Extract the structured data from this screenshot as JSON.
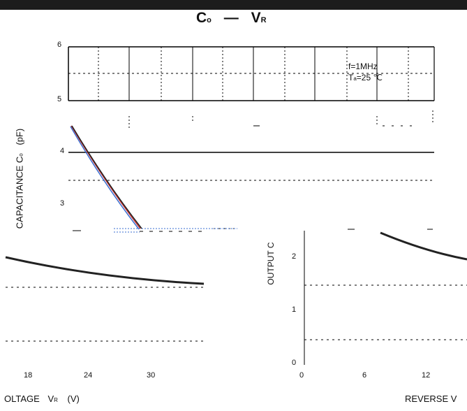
{
  "header": {
    "bar_color": "#1c1c1c"
  },
  "title": {
    "main": "C",
    "main_sub": "o",
    "dash": "—",
    "var": "V",
    "var_sub": "R"
  },
  "conditions": {
    "freq": "f=1MHz",
    "temp_prefix": "T",
    "temp_sub": "a",
    "temp_value": "=25 ℃"
  },
  "axes": {
    "y_label_left": "CAPACITANCE  C",
    "y_label_left_sub": "o",
    "y_unit_left": "(pF)",
    "y_label_right": "OUTPUT C",
    "x_label_left": "OLTAGE",
    "x_label_left_var": "V",
    "x_label_left_sub": "R",
    "x_unit_left": "(V)",
    "x_label_right": "REVERSE V"
  },
  "colors": {
    "curve": "#222222",
    "curve_red": "#c43030",
    "curve_blue": "#3a6ed0"
  },
  "chart_data": {
    "type": "line",
    "title": "Co — VR",
    "xlabel": "REVERSE VOLTAGE VR (V)",
    "ylabel": "CAPACITANCE Co (pF)",
    "note": "scanned page fragments",
    "panels": [
      {
        "name": "upper",
        "y_ticks": [
          "6",
          "5",
          "4",
          "3"
        ],
        "ylim": [
          2.5,
          6
        ],
        "series": [
          {
            "x": [
              0,
              1,
              2,
              3,
              4,
              5,
              6
            ],
            "y": [
              4.5,
              4.1,
              3.7,
              3.3,
              3.0,
              2.75,
              2.6
            ]
          }
        ]
      },
      {
        "name": "lower-left",
        "x_ticks": [
          "18",
          "24",
          "30"
        ],
        "series": [
          {
            "x": [
              14,
              18,
              22,
              26,
              30,
              34
            ],
            "y": [
              2.38,
              2.3,
              2.24,
              2.19,
              2.15,
              2.12
            ]
          }
        ]
      },
      {
        "name": "lower-right",
        "x_ticks": [
          "0",
          "6",
          "12"
        ],
        "y_ticks": [
          "2",
          "1",
          "0"
        ],
        "series": [
          {
            "x": [
              6,
              8,
              10,
              12,
              14
            ],
            "y": [
              2.45,
              2.35,
              2.28,
              2.22,
              2.16
            ]
          }
        ]
      }
    ]
  }
}
